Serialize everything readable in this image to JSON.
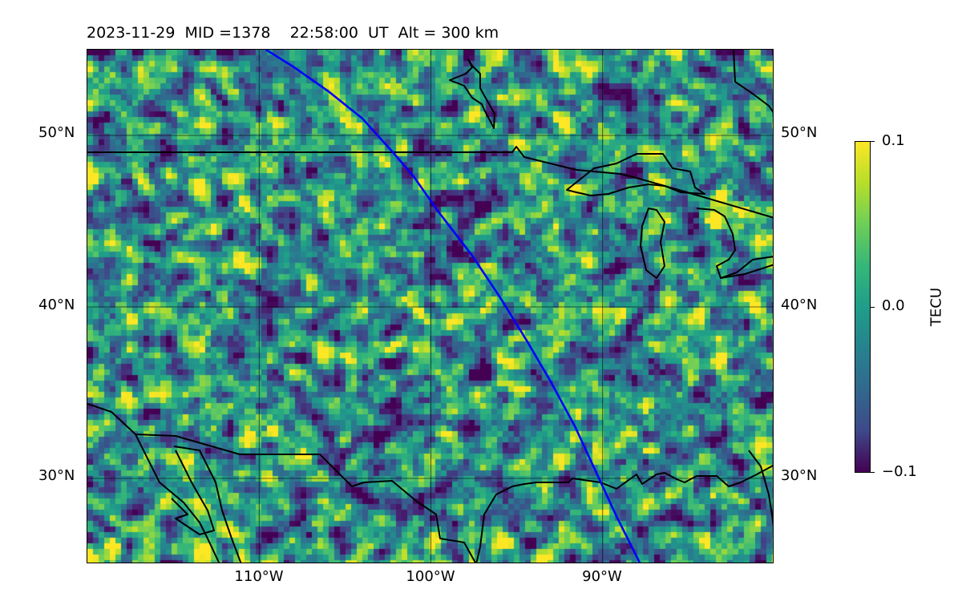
{
  "title": "2023-11-29  MID =1378    22:58:00  UT  Alt = 300 km",
  "map": {
    "projection": "equirectangular",
    "extent_deg": {
      "lon_min": -120,
      "lon_max": -80,
      "lat_min": 25,
      "lat_max": 55
    },
    "gridlines": {
      "lons": [
        -110,
        -100,
        -90
      ],
      "lats": [
        30,
        40,
        50
      ]
    },
    "lat_labels_left": [
      "50°N",
      "40°N",
      "30°N"
    ],
    "lat_labels_right": [
      "50°N",
      "40°N",
      "30°N"
    ],
    "lon_labels": [
      "110°W",
      "100°W",
      "90°W"
    ],
    "features": [
      "coastlines",
      "country-borders",
      "great-lakes"
    ],
    "track_color": "#0000ff",
    "satellite_track": [
      [
        -109.6,
        55.0
      ],
      [
        -108.0,
        54.0
      ],
      [
        -106.0,
        52.6
      ],
      [
        -104.0,
        51.0
      ],
      [
        -102.2,
        49.0
      ],
      [
        -101.0,
        47.6
      ],
      [
        -99.6,
        45.6
      ],
      [
        -97.6,
        43.0
      ],
      [
        -96.0,
        40.6
      ],
      [
        -94.4,
        38.0
      ],
      [
        -93.0,
        35.6
      ],
      [
        -91.6,
        33.0
      ],
      [
        -90.4,
        30.4
      ],
      [
        -89.2,
        27.8
      ],
      [
        -87.8,
        25.0
      ]
    ]
  },
  "colormap": "viridis",
  "colorbar": {
    "label": "TECU",
    "min": -0.1,
    "max": 0.1,
    "ticks": [
      "0.1",
      "0.0",
      "−0.1"
    ]
  }
}
